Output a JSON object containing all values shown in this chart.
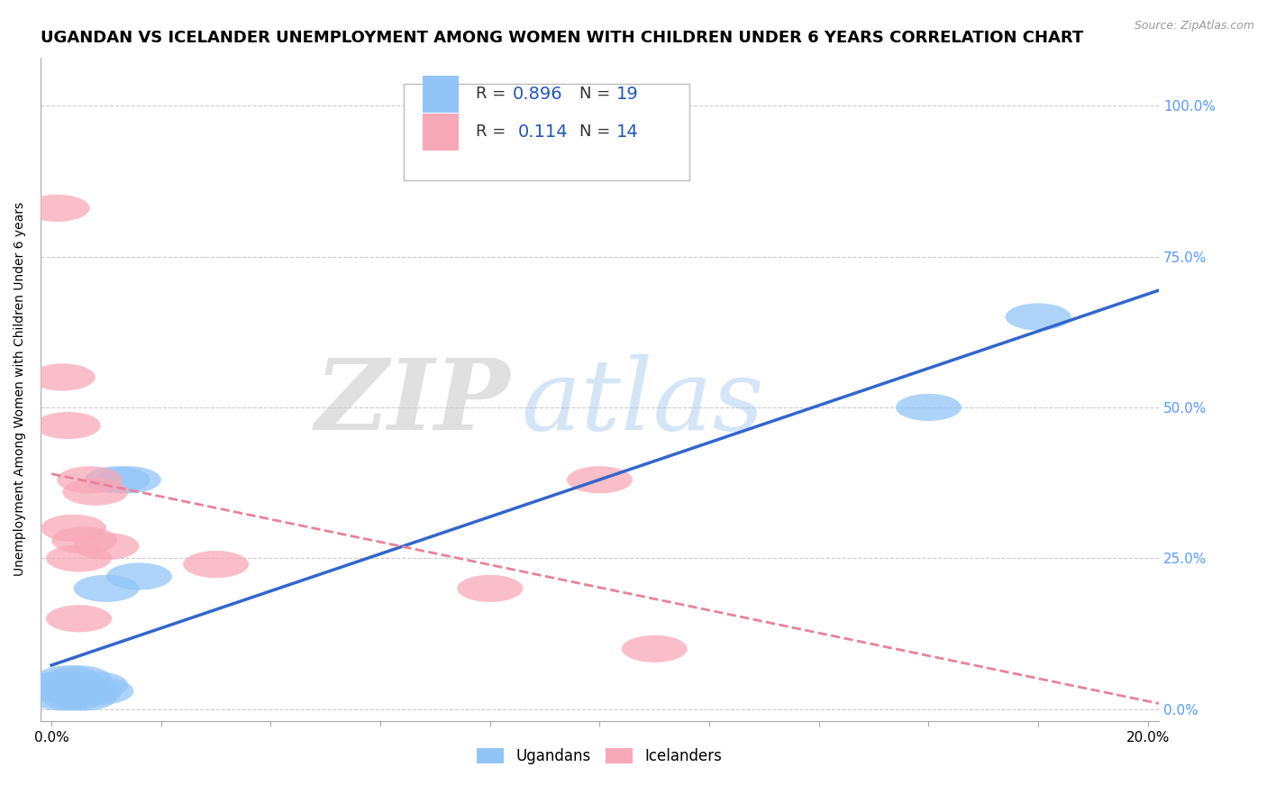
{
  "title": "UGANDAN VS ICELANDER UNEMPLOYMENT AMONG WOMEN WITH CHILDREN UNDER 6 YEARS CORRELATION CHART",
  "source": "Source: ZipAtlas.com",
  "ylabel": "Unemployment Among Women with Children Under 6 years",
  "xlim": [
    -0.002,
    0.202
  ],
  "ylim": [
    -0.02,
    1.08
  ],
  "ytick_labels_right": [
    "0.0%",
    "25.0%",
    "50.0%",
    "75.0%",
    "100.0%"
  ],
  "ytick_vals": [
    0.0,
    0.25,
    0.5,
    0.75,
    1.0
  ],
  "xtick_vals": [
    0.0,
    0.02,
    0.04,
    0.06,
    0.08,
    0.1,
    0.12,
    0.14,
    0.16,
    0.18,
    0.2
  ],
  "ugandan_x": [
    0.001,
    0.002,
    0.002,
    0.003,
    0.003,
    0.004,
    0.004,
    0.005,
    0.005,
    0.006,
    0.007,
    0.008,
    0.009,
    0.01,
    0.012,
    0.014,
    0.016,
    0.16,
    0.18
  ],
  "ugandan_y": [
    0.04,
    0.02,
    0.04,
    0.05,
    0.03,
    0.04,
    0.02,
    0.03,
    0.05,
    0.02,
    0.03,
    0.04,
    0.03,
    0.2,
    0.38,
    0.38,
    0.22,
    0.5,
    0.65
  ],
  "icelander_x": [
    0.001,
    0.002,
    0.003,
    0.004,
    0.005,
    0.005,
    0.006,
    0.007,
    0.008,
    0.01,
    0.03,
    0.08,
    0.1,
    0.11
  ],
  "icelander_y": [
    0.83,
    0.55,
    0.47,
    0.3,
    0.25,
    0.15,
    0.28,
    0.38,
    0.36,
    0.27,
    0.24,
    0.2,
    0.38,
    0.1
  ],
  "ugandan_color": "#92C5F7",
  "icelander_color": "#F7A8B8",
  "ugandan_line_color": "#3366CC",
  "icelander_line_color": "#E8829A",
  "ugandan_R": 0.896,
  "ugandan_N": 19,
  "icelander_R": 0.114,
  "icelander_N": 14,
  "watermark_zip_color": "#DDDDDD",
  "watermark_atlas_color": "#AACCFF",
  "background_color": "#FFFFFF",
  "grid_color": "#CCCCCC",
  "title_fontsize": 13,
  "axis_label_fontsize": 10,
  "tick_fontsize": 11,
  "right_tick_color": "#5599FF",
  "legend_text_dark": "#333333",
  "legend_val_color": "#2255BB"
}
